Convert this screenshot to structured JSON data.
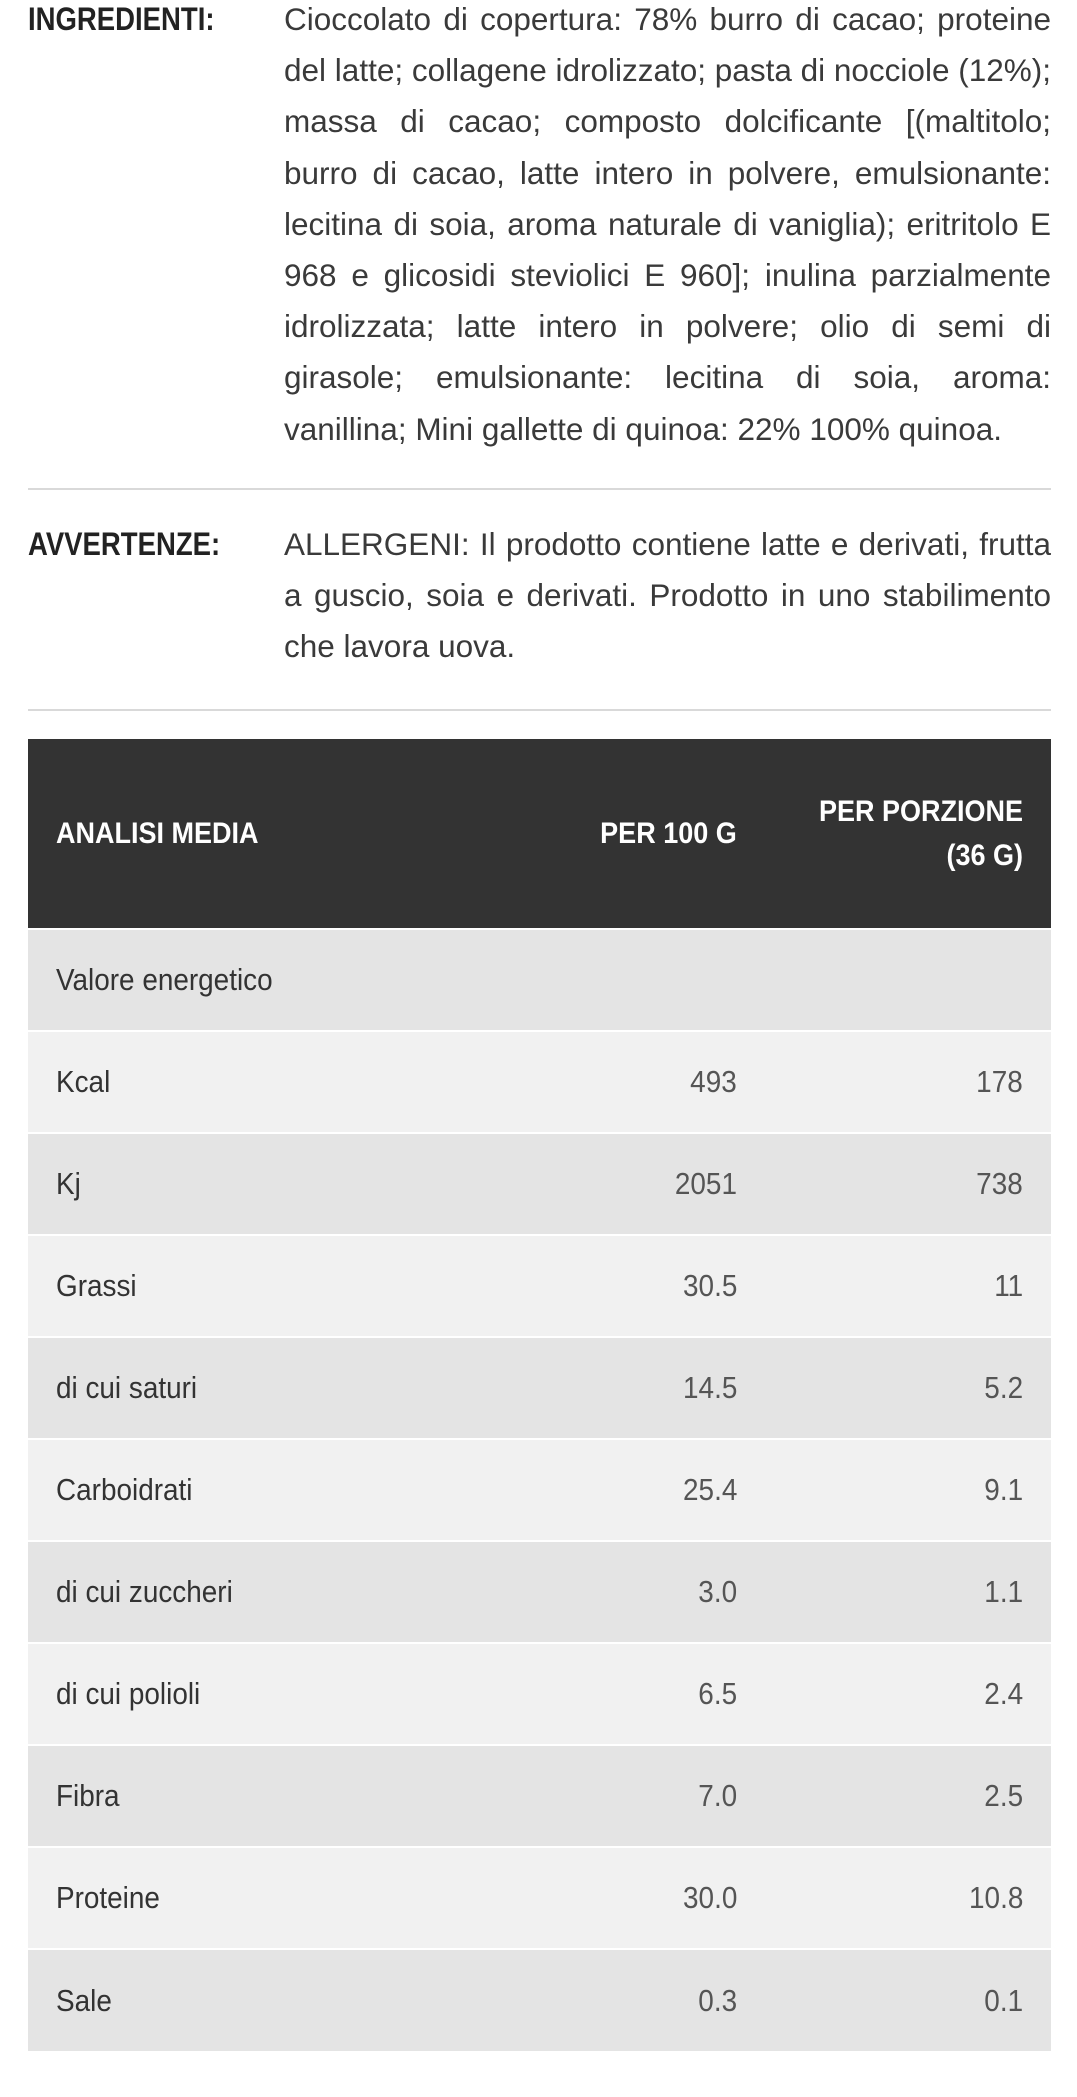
{
  "ingredienti": {
    "label": "INGREDIENTI:",
    "text": "Cioccolato di copertura: 78% burro di cacao; proteine del latte; collagene idrolizzato; pasta di nocciole (12%); massa di cacao; composto dolcificante [(maltitolo; burro di cacao, latte intero in polvere, emulsionante: lecitina di soia, aroma naturale di vaniglia); eritritolo E 968 e glicosidi steviolici E 960]; inulina parzialmente idrolizzata; latte intero in polvere; olio di semi di girasole; emulsionante: lecitina di soia, aroma: vanillina; Mini gallette di quinoa: 22% 100% quinoa."
  },
  "avvertenze": {
    "label": "AVVERTENZE:",
    "text": "ALLERGENI: Il prodotto contiene latte e derivati, frutta a guscio, soia e derivati. Prodotto in uno stabilimento che lavora uova."
  },
  "table": {
    "headers": [
      "Analisi media",
      "Per 100 g",
      "Per porzione (36 g)"
    ],
    "rows": [
      {
        "name": "Valore energetico",
        "per100": "",
        "portion": ""
      },
      {
        "name": "Kcal",
        "per100": "493",
        "portion": "178"
      },
      {
        "name": "Kj",
        "per100": "2051",
        "portion": "738"
      },
      {
        "name": "Grassi",
        "per100": "30.5",
        "portion": "11"
      },
      {
        "name": "di cui saturi",
        "per100": "14.5",
        "portion": "5.2"
      },
      {
        "name": "Carboidrati",
        "per100": "25.4",
        "portion": "9.1"
      },
      {
        "name": "di cui zuccheri",
        "per100": "3.0",
        "portion": "1.1"
      },
      {
        "name": "di cui polioli",
        "per100": "6.5",
        "portion": "2.4"
      },
      {
        "name": "Fibra",
        "per100": "7.0",
        "portion": "2.5"
      },
      {
        "name": "Proteine",
        "per100": "30.0",
        "portion": "10.8"
      },
      {
        "name": "Sale",
        "per100": "0.3",
        "portion": "0.1"
      }
    ]
  }
}
